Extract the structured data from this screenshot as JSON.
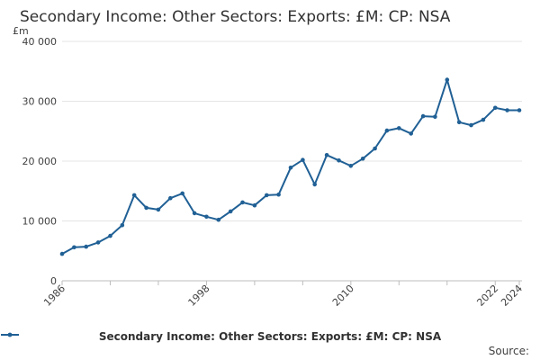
{
  "chart_data": {
    "type": "line",
    "title": "Secondary Income: Other Sectors: Exports: £M: CP: NSA",
    "ylabel": "£m",
    "xlabel": "",
    "ylim": [
      0,
      40000
    ],
    "yticks": [
      0,
      10000,
      20000,
      30000,
      40000
    ],
    "ytick_labels": [
      "0",
      "10 000",
      "20 000",
      "30 000",
      "40 000"
    ],
    "xticks": [
      1986,
      1998,
      2010,
      2022,
      2024
    ],
    "xtick_labels": [
      "1986",
      "1998",
      "2010",
      "2022",
      "2024"
    ],
    "grid": true,
    "legend_position": "bottom",
    "series": [
      {
        "name": "Secondary Income: Other Sectors: Exports: £M: CP: NSA",
        "color": "#206095",
        "x": [
          1986,
          1987,
          1988,
          1989,
          1990,
          1991,
          1992,
          1993,
          1994,
          1995,
          1996,
          1997,
          1998,
          1999,
          2000,
          2001,
          2002,
          2003,
          2004,
          2005,
          2006,
          2007,
          2008,
          2009,
          2010,
          2011,
          2012,
          2013,
          2014,
          2015,
          2016,
          2017,
          2018,
          2019,
          2020,
          2021,
          2022,
          2023,
          2024
        ],
        "values": [
          4500,
          5600,
          5700,
          6400,
          7500,
          9300,
          14300,
          12200,
          11900,
          13800,
          14600,
          11300,
          10700,
          10200,
          11600,
          13100,
          12600,
          14300,
          14400,
          18900,
          20200,
          16100,
          21000,
          20100,
          19200,
          20400,
          22100,
          25100,
          25500,
          24600,
          27500,
          27400,
          33600,
          26500,
          26000,
          26900,
          28900,
          28500,
          28500
        ]
      }
    ]
  },
  "source_label": "Source:"
}
